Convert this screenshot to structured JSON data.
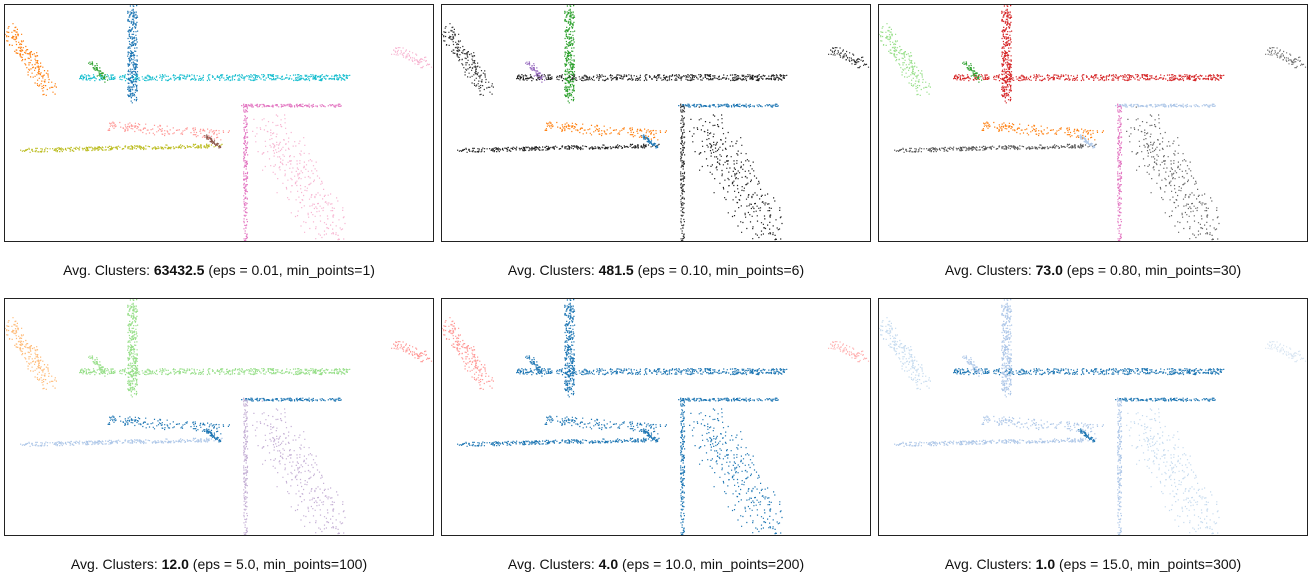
{
  "panels": [
    {
      "prefix": "Avg. Clusters: ",
      "value": "63432.5",
      "suffix": " (eps = 0.01, min_points=1)"
    },
    {
      "prefix": "Avg. Clusters: ",
      "value": "481.5",
      "suffix": " (eps = 0.10, min_points=6)"
    },
    {
      "prefix": "Avg. Clusters: ",
      "value": "73.0",
      "suffix": " (eps = 0.80, min_points=30)"
    },
    {
      "prefix": "Avg. Clusters: ",
      "value": "12.0",
      "suffix": " (eps = 5.0, min_points=100)"
    },
    {
      "prefix": "Avg. Clusters: ",
      "value": "4.0",
      "suffix": " (eps = 10.0, min_points=200)"
    },
    {
      "prefix": "Avg. Clusters: ",
      "value": "1.0",
      "suffix": " (eps = 15.0, min_points=300)"
    }
  ]
}
